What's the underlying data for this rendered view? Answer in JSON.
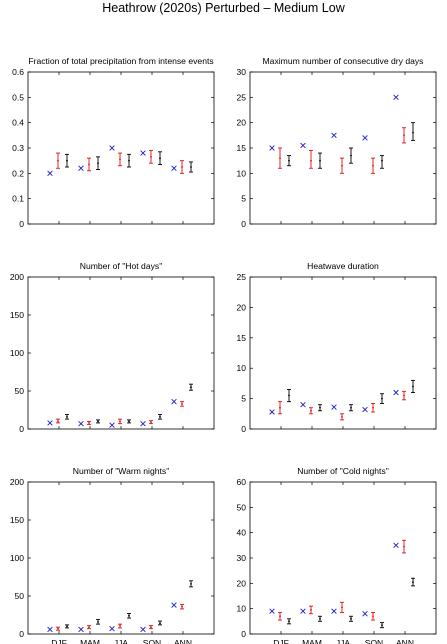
{
  "figure": {
    "title": "Heathrow (2020s) Perturbed – Medium Low"
  },
  "colors": {
    "observed": "#1a1acc",
    "control": "#e01010",
    "perturbed": "#000000",
    "axis": "#000000"
  },
  "chart_data": [
    {
      "type": "scatter",
      "title": "Fraction of total precipitation from intense events",
      "categories": [
        "DJF",
        "MAM",
        "JJA",
        "SON",
        "ANN"
      ],
      "show_category_labels": false,
      "ylim": [
        0,
        0.6
      ],
      "yticks": [
        0,
        0.1,
        0.2,
        0.3,
        0.4,
        0.5,
        0.6
      ],
      "series": [
        {
          "marker": "x",
          "color": "#1a1acc",
          "values": [
            0.2,
            0.22,
            0.3,
            0.28,
            0.22
          ]
        },
        {
          "marker": "errorbar",
          "color": "#e01010",
          "values": [
            0.25,
            0.235,
            0.255,
            0.265,
            0.225
          ],
          "low": [
            0.22,
            0.21,
            0.23,
            0.24,
            0.2
          ],
          "high": [
            0.28,
            0.26,
            0.28,
            0.29,
            0.25
          ]
        },
        {
          "marker": "errorbar",
          "color": "#000000",
          "values": [
            0.25,
            0.24,
            0.25,
            0.26,
            0.225
          ],
          "low": [
            0.225,
            0.215,
            0.225,
            0.235,
            0.205
          ],
          "high": [
            0.275,
            0.265,
            0.275,
            0.285,
            0.245
          ]
        }
      ]
    },
    {
      "type": "scatter",
      "title": "Maximum number of consecutive dry days",
      "categories": [
        "DJF",
        "MAM",
        "JJA",
        "SON",
        "ANN"
      ],
      "show_category_labels": false,
      "ylim": [
        0,
        30
      ],
      "yticks": [
        0,
        5,
        10,
        15,
        20,
        25,
        30
      ],
      "series": [
        {
          "marker": "x",
          "color": "#1a1acc",
          "values": [
            15,
            15.5,
            17.5,
            17,
            25
          ]
        },
        {
          "marker": "errorbar",
          "color": "#e01010",
          "values": [
            13,
            12.5,
            11.5,
            11.5,
            17.5
          ],
          "low": [
            11,
            11,
            10,
            10,
            16
          ],
          "high": [
            15,
            14.5,
            13,
            13,
            19
          ]
        },
        {
          "marker": "errorbar",
          "color": "#000000",
          "values": [
            12.5,
            12.5,
            13.5,
            12.5,
            18
          ],
          "low": [
            11.5,
            11,
            12,
            11,
            16.5
          ],
          "high": [
            13.5,
            14,
            15,
            13.5,
            20
          ]
        }
      ]
    },
    {
      "type": "scatter",
      "title": "Number of \"Hot days\"",
      "categories": [
        "DJF",
        "MAM",
        "JJA",
        "SON",
        "ANN"
      ],
      "show_category_labels": false,
      "ylim": [
        0,
        200
      ],
      "yticks": [
        0,
        50,
        100,
        150,
        200
      ],
      "series": [
        {
          "marker": "x",
          "color": "#1a1acc",
          "values": [
            8,
            7,
            5,
            7,
            36
          ]
        },
        {
          "marker": "errorbar",
          "color": "#e01010",
          "values": [
            10,
            8,
            10,
            9,
            33
          ],
          "low": [
            8,
            6,
            7,
            7,
            30
          ],
          "high": [
            13,
            10,
            13,
            11,
            36
          ]
        },
        {
          "marker": "errorbar",
          "color": "#000000",
          "values": [
            16,
            10,
            10,
            16,
            55
          ],
          "low": [
            13,
            8,
            8,
            13,
            51
          ],
          "high": [
            19,
            12,
            12,
            19,
            59
          ]
        }
      ]
    },
    {
      "type": "scatter",
      "title": "Heatwave duration",
      "categories": [
        "DJF",
        "MAM",
        "JJA",
        "SON",
        "ANN"
      ],
      "show_category_labels": false,
      "ylim": [
        0,
        25
      ],
      "yticks": [
        0,
        5,
        10,
        15,
        20,
        25
      ],
      "series": [
        {
          "marker": "x",
          "color": "#1a1acc",
          "values": [
            2.8,
            4,
            3.6,
            3.2,
            6
          ]
        },
        {
          "marker": "errorbar",
          "color": "#e01010",
          "values": [
            3.5,
            3,
            2,
            3.5,
            5.5
          ],
          "low": [
            2.5,
            2.5,
            1.5,
            2.8,
            4.8
          ],
          "high": [
            4.5,
            3.5,
            2.5,
            4.2,
            6.2
          ]
        },
        {
          "marker": "errorbar",
          "color": "#000000",
          "values": [
            5.5,
            3.5,
            3.5,
            5,
            7
          ],
          "low": [
            4.5,
            3,
            3,
            4.2,
            6
          ],
          "high": [
            6.5,
            4,
            4,
            5.8,
            8
          ]
        }
      ]
    },
    {
      "type": "scatter",
      "title": "Number of \"Warm nights\"",
      "categories": [
        "DJF",
        "MAM",
        "JJA",
        "SON",
        "ANN"
      ],
      "show_category_labels": true,
      "ylim": [
        0,
        200
      ],
      "yticks": [
        0,
        50,
        100,
        150,
        200
      ],
      "series": [
        {
          "marker": "x",
          "color": "#1a1acc",
          "values": [
            6,
            6,
            7,
            6,
            38
          ]
        },
        {
          "marker": "errorbar",
          "color": "#e01010",
          "values": [
            7,
            9,
            11,
            9,
            36
          ],
          "low": [
            5,
            7,
            8,
            7,
            33
          ],
          "high": [
            9,
            11,
            13,
            11,
            39
          ]
        },
        {
          "marker": "errorbar",
          "color": "#000000",
          "values": [
            10,
            16,
            24,
            14,
            66
          ],
          "low": [
            8,
            13,
            21,
            12,
            62
          ],
          "high": [
            12,
            19,
            27,
            17,
            70
          ]
        }
      ]
    },
    {
      "type": "scatter",
      "title": "Number of \"Cold nights\"",
      "categories": [
        "DJF",
        "MAM",
        "JJA",
        "SON",
        "ANN"
      ],
      "show_category_labels": true,
      "ylim": [
        0,
        60
      ],
      "yticks": [
        0,
        10,
        20,
        30,
        40,
        50,
        60
      ],
      "series": [
        {
          "marker": "x",
          "color": "#1a1acc",
          "values": [
            9,
            9,
            9,
            8,
            35
          ]
        },
        {
          "marker": "errorbar",
          "color": "#e01010",
          "values": [
            7,
            9.5,
            10.5,
            7,
            34.5
          ],
          "low": [
            5.5,
            8,
            8.5,
            5.5,
            32
          ],
          "high": [
            8.5,
            11,
            12.5,
            8.5,
            37
          ]
        },
        {
          "marker": "errorbar",
          "color": "#000000",
          "values": [
            5,
            6,
            6,
            3.5,
            20.5
          ],
          "low": [
            4,
            5,
            5,
            2.5,
            19
          ],
          "high": [
            6,
            7,
            7,
            4.5,
            22
          ]
        }
      ]
    }
  ]
}
